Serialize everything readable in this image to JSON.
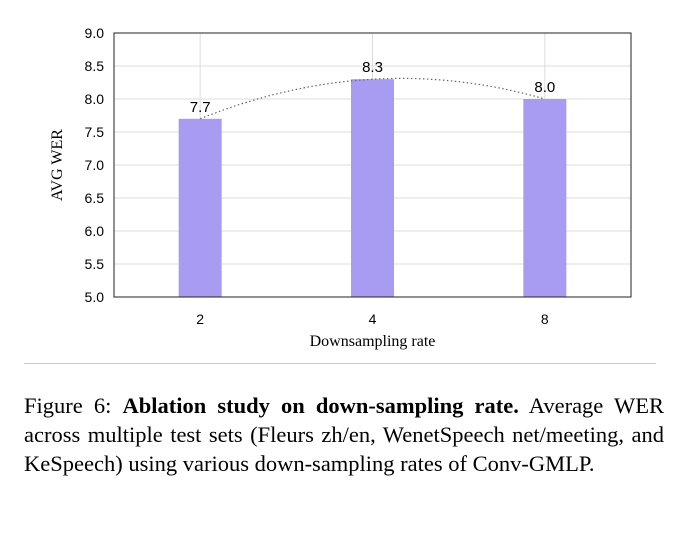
{
  "chart_data": {
    "type": "bar",
    "categories": [
      "2",
      "4",
      "8"
    ],
    "values": [
      7.7,
      8.3,
      8.0
    ],
    "data_labels": [
      "7.7",
      "8.3",
      "8.0"
    ],
    "xlabel": "Downsampling rate",
    "ylabel": "AVG WER",
    "ylim": [
      5.0,
      9.0
    ],
    "yticks": [
      "5.0",
      "5.5",
      "6.0",
      "6.5",
      "7.0",
      "7.5",
      "8.0",
      "8.5",
      "9.0"
    ],
    "bar_color": "#a89cf2",
    "trend_line": "dotted",
    "grid": true
  },
  "caption": {
    "label": "Figure 6:",
    "title": "Ablation study on down-sampling rate.",
    "text": "Average WER across multiple test sets (Fleurs zh/en, WenetSpeech net/meeting, and KeSpeech) using various down-sampling rates of Conv-GMLP."
  }
}
